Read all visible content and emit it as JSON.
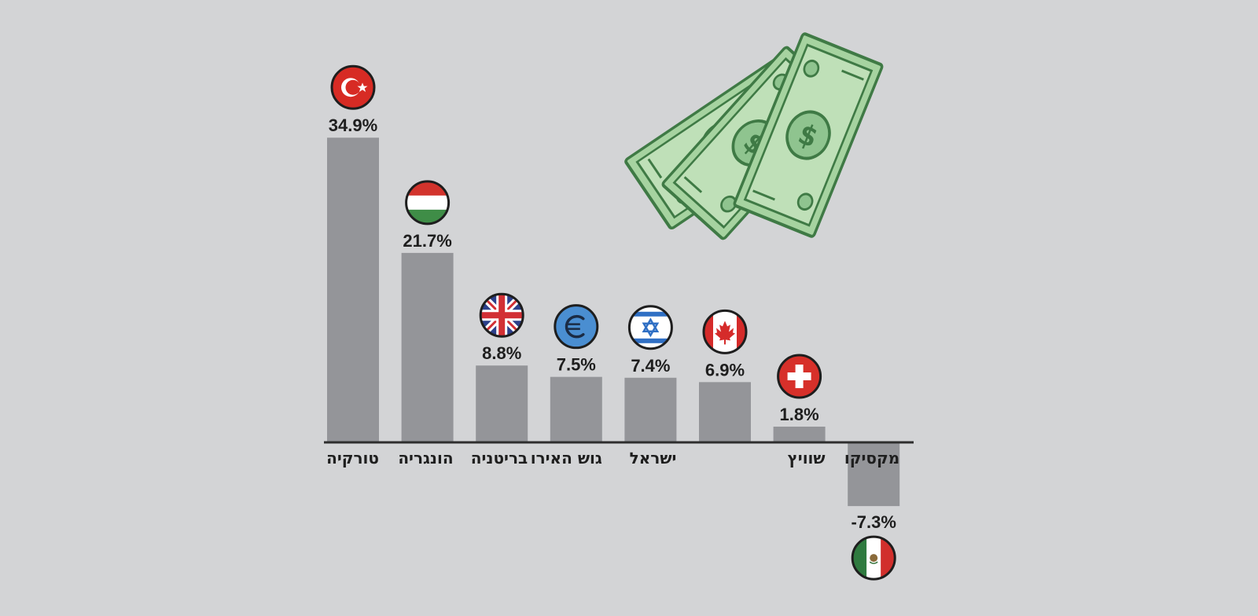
{
  "chart_data": {
    "type": "bar",
    "categories": [
      "טורקיה",
      "הונגריה",
      "בריטניה",
      "גוש האירו",
      "ישראל",
      "",
      "שוויץ",
      "מקסיקו"
    ],
    "values": [
      34.9,
      21.7,
      8.8,
      7.5,
      7.4,
      6.9,
      1.8,
      -7.3
    ],
    "value_labels": [
      "34.9%",
      "21.7%",
      "8.8%",
      "7.5%",
      "7.4%",
      "6.9%",
      "1.8%",
      "-7.3%"
    ],
    "flags": [
      "turkey-flag",
      "hungary-flag",
      "uk-flag",
      "euro-symbol",
      "israel-flag",
      "canada-flag",
      "switzerland-flag",
      "mexico-flag"
    ],
    "ylim": [
      -8,
      36
    ],
    "grid": false,
    "colors": {
      "bar": "#949599",
      "baseline": "#2e2e2e",
      "background": "#d3d4d6",
      "money": "#8fc48f",
      "money_dark": "#3f7a45"
    }
  },
  "decoration": {
    "icon": "dollar-bills-icon"
  }
}
